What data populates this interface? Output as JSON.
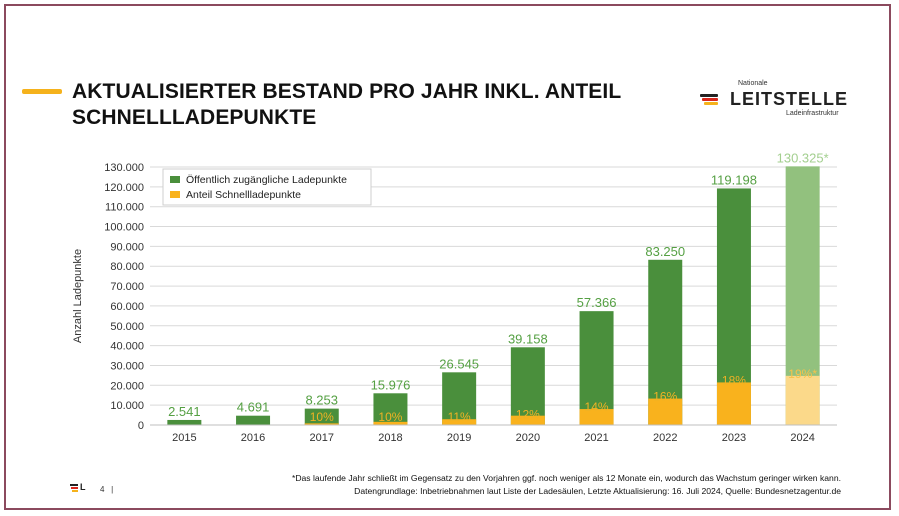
{
  "slide": {
    "title_line1": "AKTUALISIERTER BESTAND PRO JAHR INKL. ANTEIL",
    "title_line2": "SCHNELLLADEPUNKTE",
    "page_number": "4",
    "page_separator": "|",
    "footnote_line1": "*Das laufende Jahr schließt im Gegensatz zu den Vorjahren ggf. noch weniger als 12 Monate ein, wodurch das Wachstum geringer wirken kann.",
    "footnote_line2": "Datengrundlage: Inbetriebnahmen laut Liste der Ladesäulen, Letzte Aktualisierung: 16. Juli 2024, Quelle: Bundesnetzagentur.de"
  },
  "logo": {
    "top_text": "Nationale",
    "main_text": "LEITSTELLE",
    "sub_text": "Ladeinfrastruktur",
    "foot_text": "L"
  },
  "colors": {
    "frame": "#8b4a5e",
    "accent": "#f5b21c",
    "green": "#4a8f3c",
    "green_light": "#92c17e",
    "orange": "#f9b21d",
    "orange_light": "#fbd98a",
    "label_green": "#55a043",
    "label_green_light": "#a3cf8f",
    "label_orange": "#f0b224"
  },
  "chart_data": {
    "type": "bar",
    "ylabel": "Anzahl Ladepunkte",
    "xlabel": "",
    "ylim": [
      0,
      130000
    ],
    "yticks": [
      0,
      10000,
      20000,
      30000,
      40000,
      50000,
      60000,
      70000,
      80000,
      90000,
      100000,
      110000,
      120000,
      130000
    ],
    "ytick_labels": [
      "0",
      "10.000",
      "20.000",
      "30.000",
      "40.000",
      "50.000",
      "60.000",
      "70.000",
      "80.000",
      "90.000",
      "100.000",
      "110.000",
      "120.000",
      "130.000"
    ],
    "categories": [
      "2015",
      "2016",
      "2017",
      "2018",
      "2019",
      "2020",
      "2021",
      "2022",
      "2023",
      "2024"
    ],
    "grid": true,
    "legend_position": "top-left",
    "series": [
      {
        "name": "Öffentlich zugängliche Ladepunkte",
        "values": [
          2541,
          4691,
          8253,
          15976,
          26545,
          39158,
          57366,
          83250,
          119198,
          130325
        ],
        "labels": [
          "2.541",
          "4.691",
          "8.253",
          "15.976",
          "26.545",
          "39.158",
          "57.366",
          "83.250",
          "119.198",
          "130.325*"
        ]
      },
      {
        "name": "Anteil Schnellladepunkte",
        "values": [
          0,
          0,
          825,
          1598,
          2920,
          4699,
          8031,
          13320,
          21456,
          24762
        ],
        "labels": [
          "",
          "",
          "10%",
          "10%",
          "11%",
          "12%",
          "14%",
          "16%",
          "18%",
          "19%*"
        ]
      }
    ],
    "highlighted_category": "2024"
  }
}
